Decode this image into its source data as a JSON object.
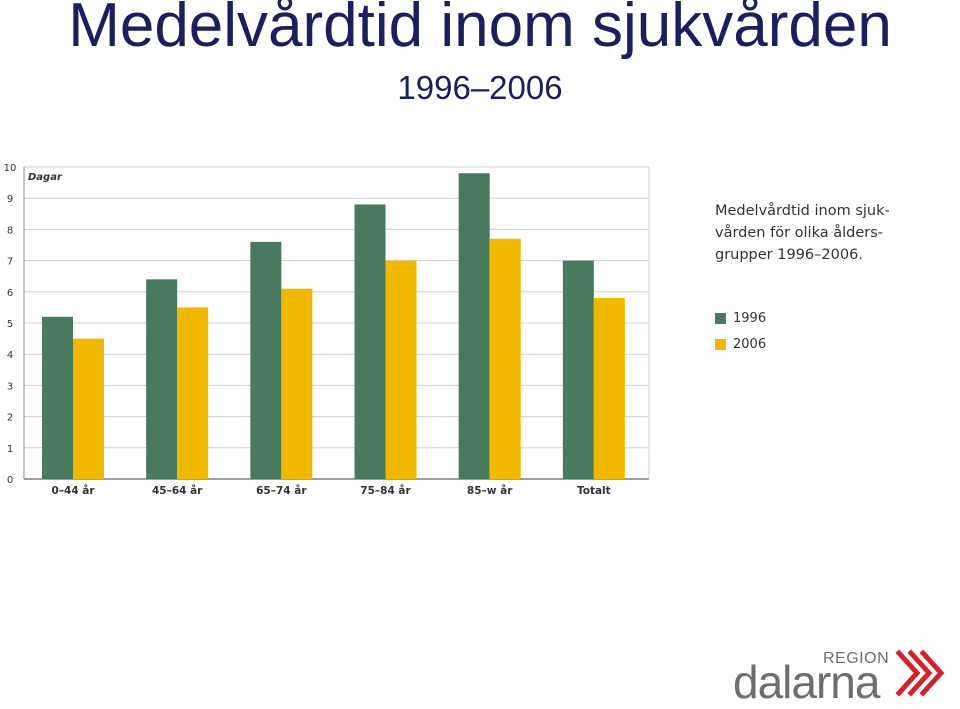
{
  "slide": {
    "title": "Medelvårdtid inom sjukvården",
    "subtitle": "1996–2006",
    "caption_lines": [
      "Medelvårdtid inom sjuk-",
      "vården för olika ålders-",
      "grupper 1996–2006."
    ]
  },
  "logo": {
    "region": "REGION",
    "name": "dalarna",
    "mark_color": "#d2232a"
  },
  "chart_data": {
    "type": "bar",
    "ylabel": "Dagar",
    "ylim": [
      0,
      10
    ],
    "yticks": [
      0,
      1,
      2,
      3,
      4,
      5,
      6,
      7,
      8,
      9,
      10
    ],
    "categories": [
      "0–44 år",
      "45–64 år",
      "65–74 år",
      "75–84 år",
      "85–w år",
      "Totalt"
    ],
    "series": [
      {
        "name": "1996",
        "color": "#4a7a5e",
        "values": [
          5.2,
          6.4,
          7.6,
          8.8,
          9.8,
          7.0
        ]
      },
      {
        "name": "2006",
        "color": "#f0b800",
        "values": [
          4.5,
          5.5,
          6.1,
          7.0,
          7.7,
          5.8
        ]
      }
    ],
    "grid": true,
    "legend_position": "right"
  }
}
